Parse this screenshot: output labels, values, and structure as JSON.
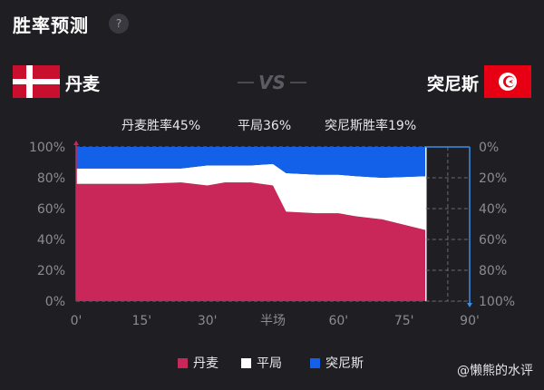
{
  "header": {
    "title": "胜率预测",
    "help_label": "?"
  },
  "match": {
    "home_team": "丹麦",
    "away_team": "突尼斯",
    "vs_label": "VS"
  },
  "probabilities": {
    "home": "丹麦胜率45%",
    "draw": "平局36%",
    "away": "突尼斯胜率19%"
  },
  "legend": {
    "home": "丹麦",
    "draw": "平局",
    "away": "突尼斯"
  },
  "watermark": "@懒熊的水评",
  "colors": {
    "home": "#c9265a",
    "draw": "#ffffff",
    "away": "#1361e8",
    "background": "#1f1e23",
    "grid": "#6a6a70",
    "axis_left": "#c9265a",
    "axis_right": "#3a8ee8"
  },
  "chart_data": {
    "type": "area",
    "stacked": true,
    "x_tick_labels": [
      "0'",
      "15'",
      "30'",
      "半场",
      "60'",
      "75'",
      "90'"
    ],
    "y_left_ticks": [
      "0%",
      "20%",
      "40%",
      "60%",
      "80%",
      "100%"
    ],
    "y_right_ticks": [
      "100%",
      "80%",
      "60%",
      "40%",
      "20%",
      "0%"
    ],
    "ylim": [
      0,
      100
    ],
    "xlim": [
      0,
      90
    ],
    "x": [
      0,
      15,
      24,
      30,
      34,
      40,
      45,
      48,
      55,
      60,
      64,
      70,
      80
    ],
    "series": [
      {
        "name": "丹麦",
        "values": [
          76,
          76,
          77,
          75,
          77,
          77,
          75,
          58,
          57,
          57,
          55,
          53,
          46
        ]
      },
      {
        "name": "平局",
        "values": [
          10,
          10,
          9,
          13,
          11,
          11,
          14,
          25,
          25,
          25,
          26,
          27,
          35
        ]
      },
      {
        "name": "突尼斯",
        "values": [
          14,
          14,
          14,
          12,
          12,
          12,
          11,
          17,
          18,
          18,
          19,
          20,
          19
        ]
      }
    ],
    "future_region_start": 80
  }
}
